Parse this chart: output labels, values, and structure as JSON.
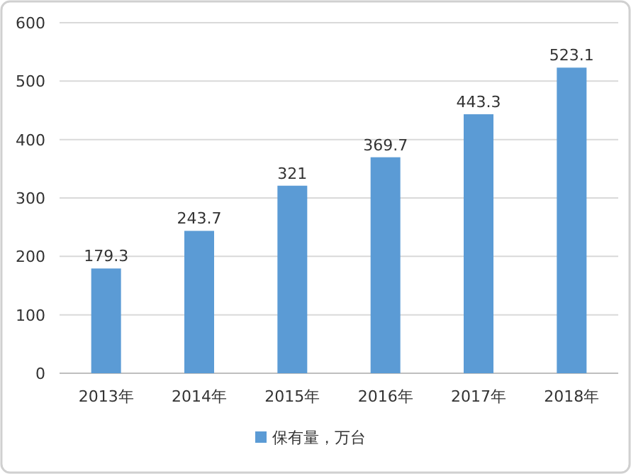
{
  "chart_data": {
    "type": "bar",
    "categories": [
      "2013年",
      "2014年",
      "2015年",
      "2016年",
      "2017年",
      "2018年"
    ],
    "series": [
      {
        "name": "保有量，万台",
        "color": "#5b9bd5",
        "values": [
          179.3,
          243.7,
          321,
          369.7,
          443.3,
          523.1
        ]
      }
    ],
    "ylim": [
      0,
      600
    ],
    "yticks": [
      0,
      100,
      200,
      300,
      400,
      500,
      600
    ],
    "grid": "y",
    "legend": "bottom",
    "data_labels": true
  }
}
